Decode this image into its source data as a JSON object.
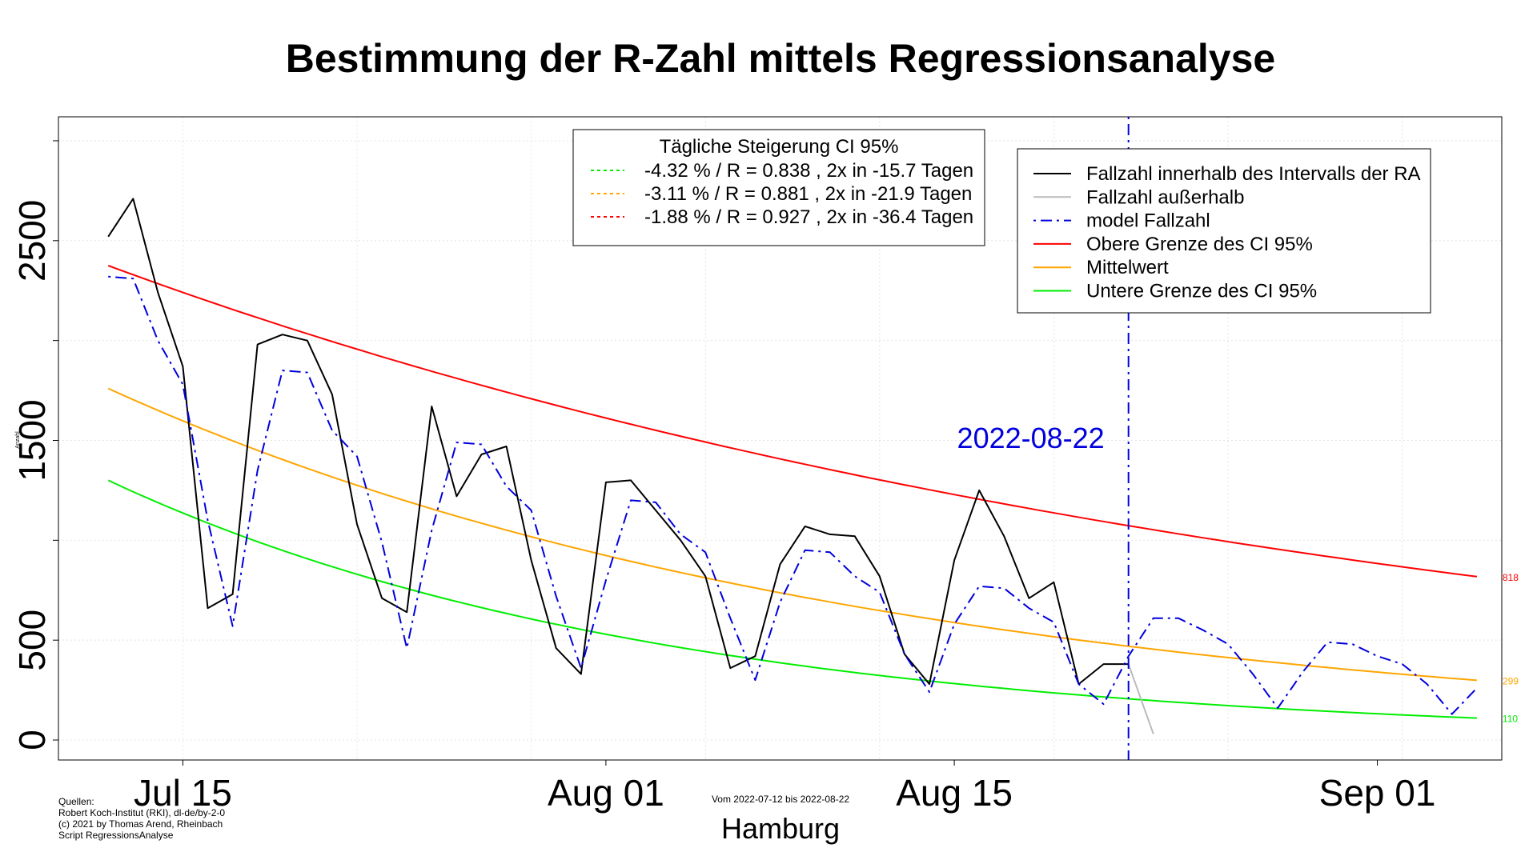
{
  "chart_data": {
    "type": "line",
    "title": "Bestimmung der R-Zahl mittels Regressionsanalyse",
    "ylabel": "Anzahl",
    "xlim": [
      "2022-07-10",
      "2022-09-06"
    ],
    "ylim": [
      -100,
      3120
    ],
    "yticks": [
      0,
      500,
      1500,
      2500
    ],
    "xticks": [
      {
        "date": "2022-07-15",
        "label": "Jul 15"
      },
      {
        "date": "2022-08-01",
        "label": "Aug 01"
      },
      {
        "date": "2022-08-15",
        "label": "Aug 15"
      },
      {
        "date": "2022-09-01",
        "label": "Sep 01"
      }
    ],
    "grid": true,
    "x": [
      "2022-07-12",
      "2022-07-13",
      "2022-07-14",
      "2022-07-15",
      "2022-07-16",
      "2022-07-17",
      "2022-07-18",
      "2022-07-19",
      "2022-07-20",
      "2022-07-21",
      "2022-07-22",
      "2022-07-23",
      "2022-07-24",
      "2022-07-25",
      "2022-07-26",
      "2022-07-27",
      "2022-07-28",
      "2022-07-29",
      "2022-07-30",
      "2022-07-31",
      "2022-08-01",
      "2022-08-02",
      "2022-08-03",
      "2022-08-04",
      "2022-08-05",
      "2022-08-06",
      "2022-08-07",
      "2022-08-08",
      "2022-08-09",
      "2022-08-10",
      "2022-08-11",
      "2022-08-12",
      "2022-08-13",
      "2022-08-14",
      "2022-08-15",
      "2022-08-16",
      "2022-08-17",
      "2022-08-18",
      "2022-08-19",
      "2022-08-20",
      "2022-08-21",
      "2022-08-22"
    ],
    "series": [
      {
        "name": "Fallzahl innerhalb des Intervalls der RA",
        "color": "#000000",
        "dash": "solid",
        "values": [
          2520,
          2710,
          2240,
          1870,
          660,
          730,
          1980,
          2030,
          2000,
          1730,
          1080,
          710,
          640,
          1670,
          1220,
          1430,
          1470,
          900,
          460,
          330,
          1290,
          1300,
          1150,
          1000,
          820,
          360,
          420,
          880,
          1070,
          1030,
          1020,
          820,
          430,
          280,
          900,
          1250,
          1020,
          710,
          790,
          280,
          380,
          380
        ]
      },
      {
        "name": "Fallzahl außerhalb",
        "color": "#bbbbbb",
        "dash": "solid",
        "x": [
          "2022-08-22",
          "2022-08-23"
        ],
        "values": [
          380,
          30
        ]
      },
      {
        "name": "model Fallzahl",
        "color": "#0000dd",
        "dash": "dotdash",
        "x": [
          "2022-07-12",
          "2022-07-13",
          "2022-07-14",
          "2022-07-15",
          "2022-07-16",
          "2022-07-17",
          "2022-07-18",
          "2022-07-19",
          "2022-07-20",
          "2022-07-21",
          "2022-07-22",
          "2022-07-23",
          "2022-07-24",
          "2022-07-25",
          "2022-07-26",
          "2022-07-27",
          "2022-07-28",
          "2022-07-29",
          "2022-07-30",
          "2022-07-31",
          "2022-08-01",
          "2022-08-02",
          "2022-08-03",
          "2022-08-04",
          "2022-08-05",
          "2022-08-06",
          "2022-08-07",
          "2022-08-08",
          "2022-08-09",
          "2022-08-10",
          "2022-08-11",
          "2022-08-12",
          "2022-08-13",
          "2022-08-14",
          "2022-08-15",
          "2022-08-16",
          "2022-08-17",
          "2022-08-18",
          "2022-08-19",
          "2022-08-20",
          "2022-08-21",
          "2022-08-22",
          "2022-08-23",
          "2022-08-24",
          "2022-08-25",
          "2022-08-26",
          "2022-08-27",
          "2022-08-28",
          "2022-08-29",
          "2022-08-30",
          "2022-08-31",
          "2022-09-01",
          "2022-09-02",
          "2022-09-03",
          "2022-09-04",
          "2022-09-05"
        ],
        "values": [
          2320,
          2310,
          2000,
          1780,
          1100,
          570,
          1350,
          1850,
          1840,
          1550,
          1420,
          990,
          460,
          1050,
          1490,
          1480,
          1270,
          1150,
          720,
          360,
          800,
          1200,
          1190,
          1030,
          940,
          610,
          300,
          690,
          950,
          940,
          820,
          740,
          430,
          240,
          580,
          770,
          760,
          660,
          590,
          280,
          180,
          420,
          610,
          610,
          550,
          480,
          330,
          160,
          340,
          490,
          480,
          420,
          380,
          280,
          130,
          260
        ]
      }
    ],
    "curves": [
      {
        "name": "Obere Grenze des CI 95%",
        "color": "#ff0000",
        "start": 2375,
        "end": 818,
        "end_label": "818"
      },
      {
        "name": "Mittelwert",
        "color": "#ffa500",
        "start": 1760,
        "end": 299,
        "end_label": "299"
      },
      {
        "name": "Untere Grenze des CI 95%",
        "color": "#00ee00",
        "start": 1300,
        "end": 110,
        "end_label": "110"
      }
    ],
    "curve_start": "2022-07-12",
    "curve_end": "2022-09-05",
    "vline": {
      "date": "2022-08-22",
      "label": "2022-08-22",
      "color": "#0000dd"
    },
    "legend_main": {
      "placement": "top-right",
      "entries": [
        {
          "label": "Fallzahl innerhalb des Intervalls der RA",
          "color": "#000000",
          "dash": "solid"
        },
        {
          "label": "Fallzahl außerhalb",
          "color": "#bbbbbb",
          "dash": "solid"
        },
        {
          "label": "model Fallzahl",
          "color": "#0000dd",
          "dash": "dotdash"
        },
        {
          "label": "Obere Grenze des CI 95%",
          "color": "#ff0000",
          "dash": "solid"
        },
        {
          "label": "Mittelwert",
          "color": "#ffa500",
          "dash": "solid"
        },
        {
          "label": "Untere Grenze des CI 95%",
          "color": "#00ee00",
          "dash": "solid"
        }
      ]
    },
    "legend_ci": {
      "placement": "top-center",
      "title": "Tägliche Steigerung CI  95%",
      "entries": [
        {
          "label": "-4.32 % / R = 0.838 , 2x in -15.7 Tagen",
          "color": "#00ee00"
        },
        {
          "label": "-3.11 % / R = 0.881 , 2x in -21.9 Tagen",
          "color": "#ffa500"
        },
        {
          "label": "-1.88 % / R = 0.927 , 2x in -36.4 Tagen",
          "color": "#ff0000"
        }
      ]
    }
  },
  "footer": {
    "sources": [
      "Quellen:",
      "Robert Koch-Institut (RKI), dl-de/by-2-0",
      "(c) 2021 by Thomas Arend, Rheinbach",
      "Script RegressionsAnalyse"
    ],
    "period": "Vom 2022-07-12 bis 2022-08-22",
    "region": "Hamburg"
  }
}
